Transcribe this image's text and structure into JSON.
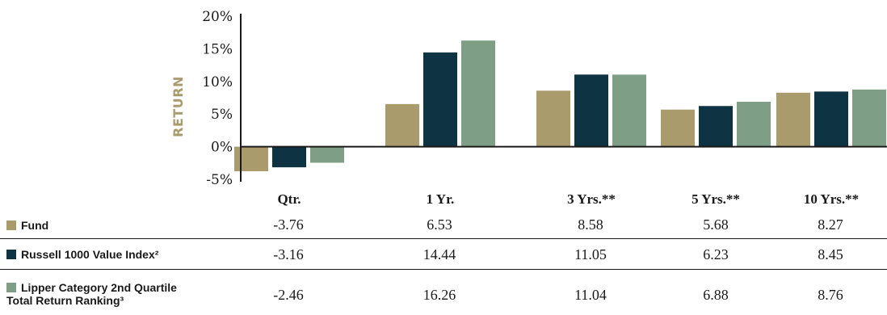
{
  "chart_data": {
    "type": "bar",
    "ylabel": "RETURN",
    "ylim": [
      -5,
      20
    ],
    "yticks": [
      "20%",
      "15%",
      "10%",
      "5%",
      "0%",
      "-5%"
    ],
    "ytick_values": [
      20,
      15,
      10,
      5,
      0,
      -5
    ],
    "categories": [
      "Qtr.",
      "1 Yr.",
      "3 Yrs.**",
      "5 Yrs.**",
      "10 Yrs.**"
    ],
    "series": [
      {
        "name": "Fund",
        "color": "#a99b6b",
        "values": [
          -3.76,
          6.53,
          8.58,
          5.68,
          8.27
        ]
      },
      {
        "name": "Russell 1000 Value Index²",
        "color": "#0e3342",
        "values": [
          -3.16,
          14.44,
          11.05,
          6.23,
          8.45
        ]
      },
      {
        "name": "Lipper Category 2nd Quartile Total Return Ranking³",
        "name_line1": "Lipper Category 2nd Quartile",
        "name_line2": "Total Return Ranking³",
        "color": "#7e9f86",
        "values": [
          -2.46,
          16.26,
          11.04,
          6.88,
          8.76
        ]
      }
    ]
  },
  "table": {
    "rows": [
      {
        "label": "Fund",
        "values": [
          "-3.76",
          "6.53",
          "8.58",
          "5.68",
          "8.27"
        ]
      },
      {
        "label": "Russell 1000 Value Index²",
        "values": [
          "-3.16",
          "14.44",
          "11.05",
          "6.23",
          "8.45"
        ]
      },
      {
        "label_line1": "Lipper Category 2nd Quartile",
        "label_line2": "Total Return Ranking³",
        "values": [
          "-2.46",
          "16.26",
          "11.04",
          "6.88",
          "8.76"
        ]
      }
    ]
  }
}
